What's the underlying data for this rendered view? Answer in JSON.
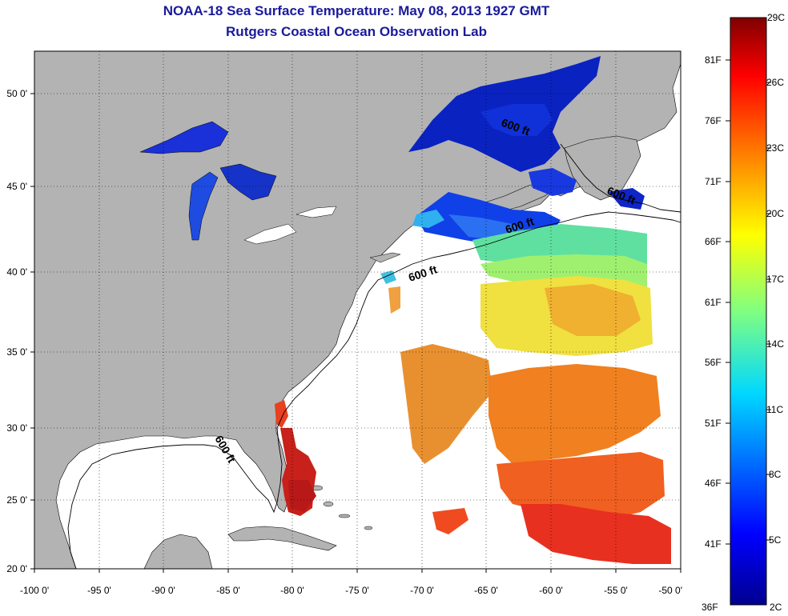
{
  "title_line1": "NOAA-18 Sea Surface Temperature:  May 08, 2013 1927 GMT",
  "title_line2": "Rutgers Coastal Ocean Observation Lab",
  "x_ticks": [
    "-100 0'",
    "-95 0'",
    "-90 0'",
    "-85 0'",
    "-80 0'",
    "-75 0'",
    "-70 0'",
    "-65 0'",
    "-60 0'",
    "-55 0'",
    "-50 0'"
  ],
  "y_ticks": [
    "20 0'",
    "25 0'",
    "30 0'",
    "35 0'",
    "40 0'",
    "45 0'",
    "50 0'"
  ],
  "contour_labels": [
    "600 ft",
    "600 ft",
    "600 ft",
    "600 ft",
    "600 ft"
  ],
  "colorbar": {
    "top_label": "29C",
    "bottom_left": "36F",
    "bottom_right": "2C",
    "fahrenheit": [
      "81F",
      "76F",
      "71F",
      "66F",
      "61F",
      "56F",
      "51F",
      "46F",
      "41F"
    ],
    "celsius": [
      "26C",
      "23C",
      "20C",
      "17C",
      "14C",
      "11C",
      "8C",
      "5C"
    ]
  },
  "colors": {
    "land": "#b3b3b3",
    "ocean_no_data": "#ffffff",
    "title": "#1a1a9c",
    "warm": "#d40000",
    "cold": "#0a1fb0"
  }
}
